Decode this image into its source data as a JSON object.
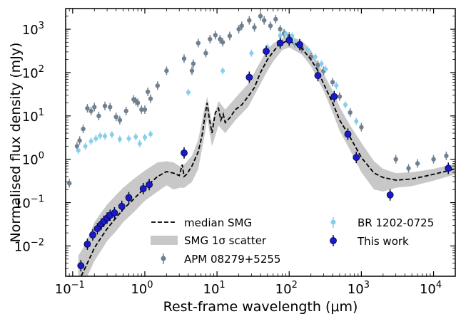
{
  "chart_data": {
    "type": "scatter",
    "xlabel": "Rest-frame wavelength (μm)",
    "ylabel": "Normalised flux density (mJy)",
    "x_scale": "log",
    "y_scale": "log",
    "xlim": [
      0.08,
      20000
    ],
    "ylim": [
      0.002,
      3000
    ],
    "grid": false,
    "legend_position": "bottom-right",
    "x_ticks": [
      {
        "value": 0.1,
        "base": "10",
        "exp": "−1"
      },
      {
        "value": 1,
        "base": "10",
        "exp": "0"
      },
      {
        "value": 10,
        "base": "10",
        "exp": "1"
      },
      {
        "value": 100,
        "base": "10",
        "exp": "2"
      },
      {
        "value": 1000,
        "base": "10",
        "exp": "3"
      },
      {
        "value": 10000,
        "base": "10",
        "exp": "4"
      }
    ],
    "y_ticks": [
      {
        "value": 0.01,
        "base": "10",
        "exp": "−2"
      },
      {
        "value": 0.1,
        "base": "10",
        "exp": "−1"
      },
      {
        "value": 1,
        "base": "10",
        "exp": "0"
      },
      {
        "value": 10,
        "base": "10",
        "exp": "1"
      },
      {
        "value": 100,
        "base": "10",
        "exp": "2"
      },
      {
        "value": 1000,
        "base": "10",
        "exp": "3"
      }
    ],
    "legend": {
      "median": "median SMG",
      "scatter": "SMG 1σ scatter",
      "apm": "APM 08279+5255",
      "br": "BR 1202-0725",
      "this_work": "This work"
    },
    "series": [
      {
        "name": "median SMG",
        "kind": "line",
        "color": "#000000",
        "style": "dashed",
        "x": [
          0.12,
          0.14,
          0.17,
          0.2,
          0.25,
          0.3,
          0.4,
          0.5,
          0.7,
          1.0,
          1.5,
          2.0,
          2.5,
          3.0,
          3.3,
          3.5,
          3.8,
          4.5,
          5.5,
          6.2,
          6.8,
          7.3,
          7.8,
          8.5,
          9.5,
          10.5,
          11.3,
          12.2,
          13,
          15,
          18,
          22,
          27,
          33,
          40,
          50,
          60,
          70,
          80,
          90,
          100,
          120,
          150,
          200,
          250,
          300,
          400,
          500,
          700,
          1000,
          1500,
          2000,
          3000,
          5000,
          10000,
          20000
        ],
        "y": [
          0.0015,
          0.0025,
          0.005,
          0.009,
          0.016,
          0.025,
          0.045,
          0.07,
          0.12,
          0.22,
          0.4,
          0.52,
          0.48,
          0.42,
          0.75,
          0.4,
          0.45,
          0.7,
          1.5,
          3.5,
          10,
          20,
          9,
          4,
          12,
          15,
          8,
          11,
          7,
          9,
          14,
          18,
          28,
          45,
          100,
          200,
          300,
          420,
          480,
          520,
          520,
          470,
          360,
          200,
          110,
          55,
          20,
          8,
          3.2,
          1.1,
          0.48,
          0.38,
          0.33,
          0.35,
          0.45,
          0.6
        ]
      },
      {
        "name": "SMG 1σ scatter",
        "kind": "band",
        "color": "#c8c8c8",
        "x": [
          0.12,
          0.14,
          0.17,
          0.2,
          0.25,
          0.3,
          0.4,
          0.5,
          0.7,
          1.0,
          1.5,
          2.0,
          2.5,
          3.0,
          3.5,
          4.5,
          5.5,
          6.8,
          7.3,
          8.5,
          10.5,
          13,
          18,
          27,
          40,
          50,
          60,
          80,
          100,
          150,
          200,
          300,
          400,
          500,
          700,
          1000,
          1500,
          2000,
          3000,
          5000,
          10000,
          20000
        ],
        "lower": [
          0.0008,
          0.0012,
          0.0025,
          0.0045,
          0.008,
          0.013,
          0.022,
          0.035,
          0.06,
          0.11,
          0.18,
          0.25,
          0.2,
          0.22,
          0.22,
          0.3,
          0.6,
          4,
          9,
          2,
          6,
          4,
          8,
          16,
          55,
          110,
          180,
          330,
          380,
          260,
          140,
          38,
          12,
          4.5,
          1.6,
          0.5,
          0.2,
          0.18,
          0.22,
          0.24,
          0.32,
          0.45
        ],
        "upper": [
          0.006,
          0.009,
          0.018,
          0.035,
          0.06,
          0.09,
          0.15,
          0.22,
          0.35,
          0.55,
          0.85,
          0.9,
          0.85,
          0.7,
          0.75,
          1.2,
          2.8,
          17,
          28,
          7,
          22,
          14,
          26,
          55,
          180,
          350,
          470,
          620,
          700,
          540,
          330,
          95,
          38,
          16,
          6,
          2.4,
          0.9,
          0.6,
          0.48,
          0.5,
          0.6,
          0.8
        ]
      },
      {
        "name": "APM 08279+5255",
        "kind": "scatter",
        "color": "#708090",
        "x": [
          0.09,
          0.115,
          0.125,
          0.14,
          0.16,
          0.18,
          0.2,
          0.23,
          0.28,
          0.33,
          0.4,
          0.45,
          0.55,
          0.7,
          0.75,
          0.8,
          0.9,
          1.0,
          1.1,
          1.2,
          1.5,
          2.0,
          3.5,
          4.5,
          4.7,
          5.5,
          7.0,
          8.0,
          9.5,
          11,
          12,
          15,
          20,
          22,
          28,
          33,
          40,
          45,
          55,
          65,
          75,
          85,
          100,
          120,
          150,
          200,
          250,
          300,
          400,
          500,
          700,
          1000,
          3000,
          4500,
          6000,
          10000,
          15000
        ],
        "y": [
          0.28,
          2.0,
          2.7,
          5.0,
          15,
          13,
          16,
          10,
          17,
          16,
          9.5,
          8.0,
          13,
          24,
          22,
          20,
          14,
          14,
          36,
          25,
          50,
          110,
          210,
          110,
          160,
          480,
          280,
          590,
          730,
          590,
          500,
          700,
          1000,
          1200,
          1600,
          1100,
          2000,
          1600,
          1200,
          1700,
          1000,
          800,
          690,
          480,
          360,
          230,
          150,
          110,
          60,
          28,
          12,
          5.5,
          1.0,
          0.62,
          0.8,
          1.0,
          1.2
        ]
      },
      {
        "name": "BR 1202-0725",
        "kind": "scatter",
        "color": "#87ceeb",
        "x": [
          0.12,
          0.15,
          0.18,
          0.21,
          0.24,
          0.28,
          0.35,
          0.45,
          0.6,
          0.75,
          0.85,
          1.0,
          1.2,
          4.0,
          12,
          30,
          50,
          75,
          90,
          110,
          120,
          140,
          180,
          230,
          280,
          320,
          450,
          600,
          850
        ],
        "y": [
          1.6,
          2.0,
          2.6,
          3.0,
          3.5,
          3.4,
          3.7,
          2.9,
          3.0,
          3.3,
          2.3,
          3.2,
          3.8,
          35,
          110,
          280,
          380,
          720,
          780,
          700,
          500,
          470,
          340,
          230,
          160,
          120,
          50,
          18,
          7.5
        ]
      },
      {
        "name": "This work",
        "kind": "scatter",
        "color": "#00008b",
        "x": [
          0.13,
          0.16,
          0.19,
          0.22,
          0.25,
          0.27,
          0.3,
          0.33,
          0.38,
          0.48,
          0.6,
          0.95,
          1.15,
          3.5,
          28,
          48,
          75,
          100,
          140,
          250,
          420,
          650,
          850,
          2500,
          16000
        ],
        "y": [
          0.0035,
          0.011,
          0.018,
          0.025,
          0.032,
          0.037,
          0.044,
          0.051,
          0.058,
          0.082,
          0.13,
          0.21,
          0.26,
          1.4,
          78,
          310,
          480,
          560,
          440,
          85,
          28,
          3.8,
          1.1,
          0.15,
          0.62
        ]
      }
    ]
  }
}
